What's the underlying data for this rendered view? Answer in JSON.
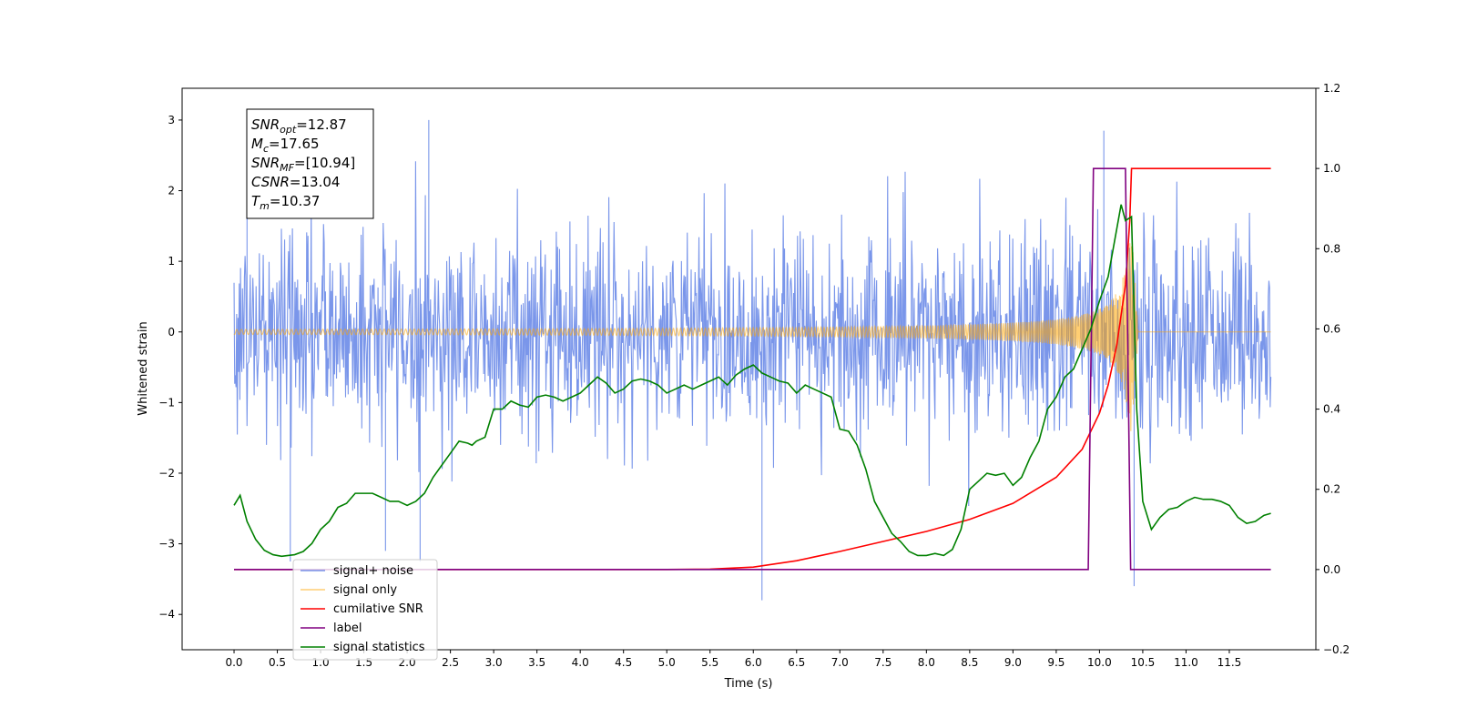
{
  "chart_data": {
    "type": "line",
    "xlabel": "Time (s)",
    "ylabel": "Whitened strain",
    "xlim": [
      -0.6,
      12.5
    ],
    "ylim_left": [
      -4.5,
      3.45
    ],
    "ylim_right": [
      -0.2,
      1.2
    ],
    "x_ticks": [
      "0.0",
      "0.5",
      "1.0",
      "1.5",
      "2.0",
      "2.5",
      "3.0",
      "3.5",
      "4.0",
      "4.5",
      "5.0",
      "5.5",
      "6.0",
      "6.5",
      "7.0",
      "7.5",
      "8.0",
      "8.5",
      "9.0",
      "9.5",
      "10.0",
      "10.5",
      "11.0",
      "11.5"
    ],
    "y_ticks_left": [
      "−4",
      "−3",
      "−2",
      "−1",
      "0",
      "1",
      "2",
      "3"
    ],
    "y_ticks_right": [
      "−0.2",
      "0.0",
      "0.2",
      "0.4",
      "0.6",
      "0.8",
      "1.0",
      "1.2"
    ],
    "grid": false,
    "legend_position": "bottom-left",
    "annotation": {
      "lines": [
        {
          "sym": "SNR",
          "sub": "opt",
          "value": "=12.87"
        },
        {
          "sym": "M",
          "sub": "c",
          "value": "=17.65"
        },
        {
          "sym": "SNR",
          "sub": "MF",
          "value": "=[10.94]"
        },
        {
          "sym": "CSNR",
          "sub": "",
          "value": "=13.04"
        },
        {
          "sym": "T",
          "sub": "m",
          "value": "=10.37"
        }
      ]
    },
    "series": [
      {
        "name": "signal+ noise",
        "axis": "left",
        "color": "#4169e1",
        "noise_sigma": 0.75,
        "x_range": [
          0.0,
          11.98
        ],
        "n_points": 1600,
        "notable_spikes": [
          [
            0.65,
            -3.25
          ],
          [
            1.75,
            -3.1
          ],
          [
            2.15,
            -3.25
          ],
          [
            6.1,
            -3.8
          ],
          [
            10.4,
            -3.6
          ],
          [
            0.15,
            3.1
          ],
          [
            2.25,
            3.0
          ],
          [
            10.05,
            2.85
          ]
        ]
      },
      {
        "name": "signal only",
        "axis": "left",
        "color": "#ffa500",
        "chirp": {
          "x_start": 0.0,
          "x_merger": 10.37,
          "x_end": 11.98,
          "peak_amplitude": 1.45
        }
      },
      {
        "name": "cumilative SNR",
        "axis": "right",
        "color": "#ff0000",
        "x": [
          0.0,
          5.0,
          5.5,
          6.0,
          6.5,
          7.0,
          7.5,
          8.0,
          8.5,
          9.0,
          9.5,
          9.8,
          10.0,
          10.1,
          10.2,
          10.3,
          10.35,
          10.37,
          10.4,
          11.98
        ],
        "y": [
          0.0,
          0.0,
          0.001,
          0.006,
          0.022,
          0.045,
          0.07,
          0.095,
          0.125,
          0.165,
          0.23,
          0.3,
          0.39,
          0.46,
          0.56,
          0.71,
          0.87,
          1.0,
          1.0,
          1.0
        ]
      },
      {
        "name": "label",
        "axis": "right",
        "color": "#800080",
        "x": [
          0.0,
          9.87,
          9.93,
          10.3,
          10.36,
          11.98
        ],
        "y": [
          0.0,
          0.0,
          1.0,
          1.0,
          0.0,
          0.0
        ]
      },
      {
        "name": "signal statistics",
        "axis": "right",
        "color": "#008000",
        "x": [
          0.0,
          0.07,
          0.15,
          0.25,
          0.35,
          0.45,
          0.55,
          0.7,
          0.8,
          0.9,
          1.0,
          1.1,
          1.2,
          1.3,
          1.4,
          1.5,
          1.6,
          1.7,
          1.8,
          1.9,
          2.0,
          2.1,
          2.2,
          2.3,
          2.4,
          2.5,
          2.6,
          2.7,
          2.75,
          2.8,
          2.9,
          3.0,
          3.1,
          3.2,
          3.3,
          3.4,
          3.5,
          3.6,
          3.7,
          3.8,
          3.9,
          4.0,
          4.1,
          4.2,
          4.3,
          4.4,
          4.5,
          4.6,
          4.7,
          4.8,
          4.9,
          5.0,
          5.1,
          5.2,
          5.3,
          5.4,
          5.5,
          5.6,
          5.7,
          5.8,
          5.9,
          6.0,
          6.1,
          6.2,
          6.3,
          6.4,
          6.5,
          6.6,
          6.7,
          6.8,
          6.9,
          7.0,
          7.1,
          7.2,
          7.3,
          7.4,
          7.5,
          7.6,
          7.7,
          7.8,
          7.9,
          8.0,
          8.1,
          8.2,
          8.3,
          8.4,
          8.5,
          8.6,
          8.7,
          8.8,
          8.9,
          9.0,
          9.1,
          9.2,
          9.3,
          9.4,
          9.5,
          9.6,
          9.7,
          9.8,
          9.9,
          10.0,
          10.1,
          10.2,
          10.25,
          10.3,
          10.37,
          10.43,
          10.5,
          10.6,
          10.7,
          10.8,
          10.9,
          11.0,
          11.1,
          11.2,
          11.3,
          11.4,
          11.5,
          11.6,
          11.7,
          11.8,
          11.9,
          11.98
        ],
        "y": [
          0.16,
          0.185,
          0.12,
          0.075,
          0.048,
          0.037,
          0.033,
          0.037,
          0.045,
          0.065,
          0.1,
          0.12,
          0.155,
          0.165,
          0.19,
          0.19,
          0.19,
          0.18,
          0.17,
          0.17,
          0.16,
          0.17,
          0.19,
          0.23,
          0.26,
          0.29,
          0.32,
          0.315,
          0.31,
          0.32,
          0.33,
          0.4,
          0.4,
          0.42,
          0.41,
          0.405,
          0.43,
          0.435,
          0.43,
          0.42,
          0.43,
          0.44,
          0.46,
          0.48,
          0.465,
          0.44,
          0.45,
          0.47,
          0.475,
          0.47,
          0.46,
          0.44,
          0.45,
          0.46,
          0.45,
          0.46,
          0.47,
          0.48,
          0.46,
          0.485,
          0.5,
          0.51,
          0.49,
          0.48,
          0.47,
          0.465,
          0.44,
          0.46,
          0.45,
          0.44,
          0.43,
          0.35,
          0.345,
          0.31,
          0.25,
          0.17,
          0.13,
          0.09,
          0.07,
          0.045,
          0.035,
          0.035,
          0.04,
          0.035,
          0.05,
          0.1,
          0.2,
          0.22,
          0.24,
          0.235,
          0.24,
          0.21,
          0.23,
          0.28,
          0.32,
          0.4,
          0.43,
          0.48,
          0.5,
          0.55,
          0.6,
          0.67,
          0.73,
          0.85,
          0.91,
          0.87,
          0.88,
          0.4,
          0.17,
          0.1,
          0.13,
          0.15,
          0.155,
          0.17,
          0.18,
          0.175,
          0.175,
          0.17,
          0.16,
          0.13,
          0.115,
          0.12,
          0.135,
          0.14
        ]
      }
    ]
  }
}
